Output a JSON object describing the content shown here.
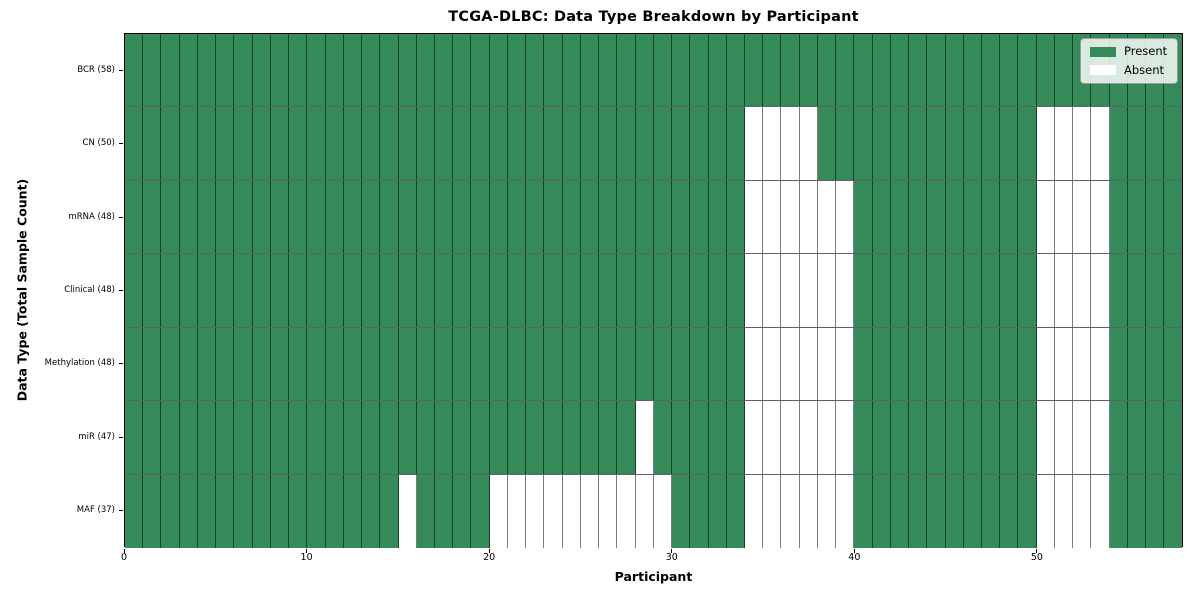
{
  "chart_data": {
    "type": "heatmap",
    "title": "TCGA-DLBC: Data Type Breakdown by Participant",
    "xlabel": "Participant",
    "ylabel": "Data Type (Total Sample Count)",
    "x_ticks": [
      0,
      10,
      20,
      30,
      40,
      50
    ],
    "x_range": [
      0,
      58
    ],
    "n_participants": 58,
    "grid": true,
    "legend_position": "upper right",
    "rows": [
      {
        "label": "BCR (58)",
        "present_count": 58,
        "absent_ranges": []
      },
      {
        "label": "CN (50)",
        "present_count": 50,
        "absent_ranges": [
          [
            34,
            37
          ],
          [
            50,
            53
          ]
        ]
      },
      {
        "label": "mRNA (48)",
        "present_count": 48,
        "absent_ranges": [
          [
            34,
            39
          ],
          [
            50,
            53
          ]
        ]
      },
      {
        "label": "Clinical (48)",
        "present_count": 48,
        "absent_ranges": [
          [
            34,
            39
          ],
          [
            50,
            53
          ]
        ]
      },
      {
        "label": "Methylation (48)",
        "present_count": 48,
        "absent_ranges": [
          [
            34,
            39
          ],
          [
            50,
            53
          ]
        ]
      },
      {
        "label": "miR (47)",
        "present_count": 47,
        "absent_ranges": [
          [
            28,
            28
          ],
          [
            34,
            39
          ],
          [
            50,
            53
          ]
        ]
      },
      {
        "label": "MAF (37)",
        "present_count": 37,
        "absent_ranges": [
          [
            15,
            15
          ],
          [
            20,
            29
          ],
          [
            34,
            39
          ],
          [
            50,
            53
          ]
        ]
      }
    ],
    "legend": [
      {
        "label": "Present",
        "color": "#348a58"
      },
      {
        "label": "Absent",
        "color": "#ffffff"
      }
    ],
    "colors": {
      "present": "#348a58",
      "absent": "#ffffff",
      "border": "#000000"
    }
  }
}
